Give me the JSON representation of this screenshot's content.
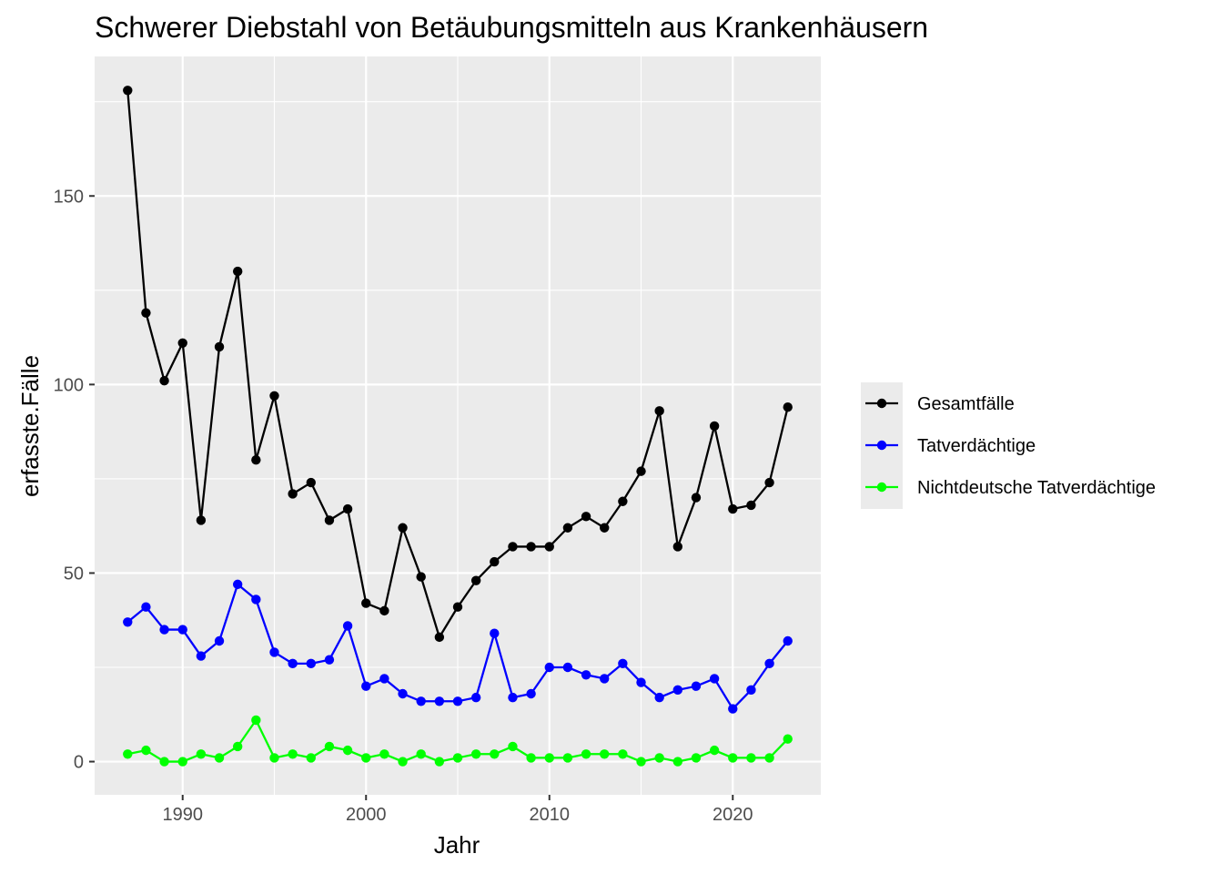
{
  "chart_data": {
    "type": "line",
    "title": "Schwerer Diebstahl von Betäubungsmitteln aus Krankenhäusern",
    "xlabel": "Jahr",
    "ylabel": "erfasste.Fälle",
    "xlim": [
      1985.2,
      2024.8
    ],
    "ylim": [
      -8.8,
      187
    ],
    "x_ticks": [
      1990,
      2000,
      2010,
      2020
    ],
    "y_ticks": [
      0,
      50,
      100,
      150
    ],
    "grid": true,
    "legend_position": "right",
    "x": [
      1987,
      1988,
      1989,
      1990,
      1991,
      1992,
      1993,
      1994,
      1995,
      1996,
      1997,
      1998,
      1999,
      2000,
      2001,
      2002,
      2003,
      2004,
      2005,
      2006,
      2007,
      2008,
      2009,
      2010,
      2011,
      2012,
      2013,
      2014,
      2015,
      2016,
      2017,
      2018,
      2019,
      2020,
      2021,
      2022,
      2023
    ],
    "series": [
      {
        "name": "Gesamtfälle",
        "color": "#000000",
        "values": [
          178,
          119,
          101,
          111,
          64,
          110,
          130,
          80,
          97,
          71,
          74,
          64,
          67,
          42,
          40,
          62,
          49,
          33,
          41,
          48,
          53,
          57,
          57,
          57,
          62,
          65,
          62,
          69,
          77,
          93,
          57,
          70,
          89,
          67,
          68,
          74,
          94
        ]
      },
      {
        "name": "Tatverdächtige",
        "color": "#0000ff",
        "values": [
          37,
          41,
          35,
          35,
          28,
          32,
          47,
          43,
          29,
          26,
          26,
          27,
          36,
          20,
          22,
          18,
          16,
          16,
          16,
          17,
          34,
          17,
          18,
          25,
          25,
          23,
          22,
          26,
          21,
          17,
          19,
          20,
          22,
          14,
          19,
          26,
          32
        ]
      },
      {
        "name": "Nichtdeutsche Tatverdächtige",
        "color": "#00ff00",
        "values": [
          2,
          3,
          0,
          0,
          2,
          1,
          4,
          11,
          1,
          2,
          1,
          4,
          3,
          1,
          2,
          0,
          2,
          0,
          1,
          2,
          2,
          4,
          1,
          1,
          1,
          2,
          2,
          2,
          0,
          1,
          0,
          1,
          3,
          1,
          1,
          1,
          6
        ]
      }
    ]
  }
}
